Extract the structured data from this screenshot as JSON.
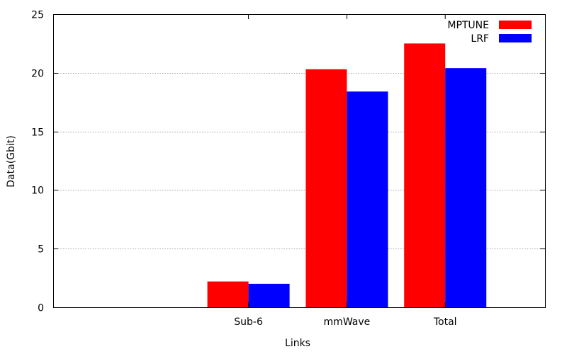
{
  "chart_data": {
    "type": "bar",
    "title": "",
    "xlabel": "Links",
    "ylabel": "Data(Gbit)",
    "categories": [
      "Sub-6",
      "mmWave",
      "Total"
    ],
    "series": [
      {
        "name": "MPTUNE",
        "values": [
          2.2,
          20.3,
          22.5
        ],
        "color": "#ff0000"
      },
      {
        "name": "LRF",
        "values": [
          2.0,
          18.4,
          20.4
        ],
        "color": "#0000ff"
      }
    ],
    "ylim": [
      0,
      25
    ],
    "yticks": [
      "0",
      "5",
      "10",
      "15",
      "20",
      "25"
    ],
    "grid": "horizontal dotted",
    "legend": "top-right"
  }
}
